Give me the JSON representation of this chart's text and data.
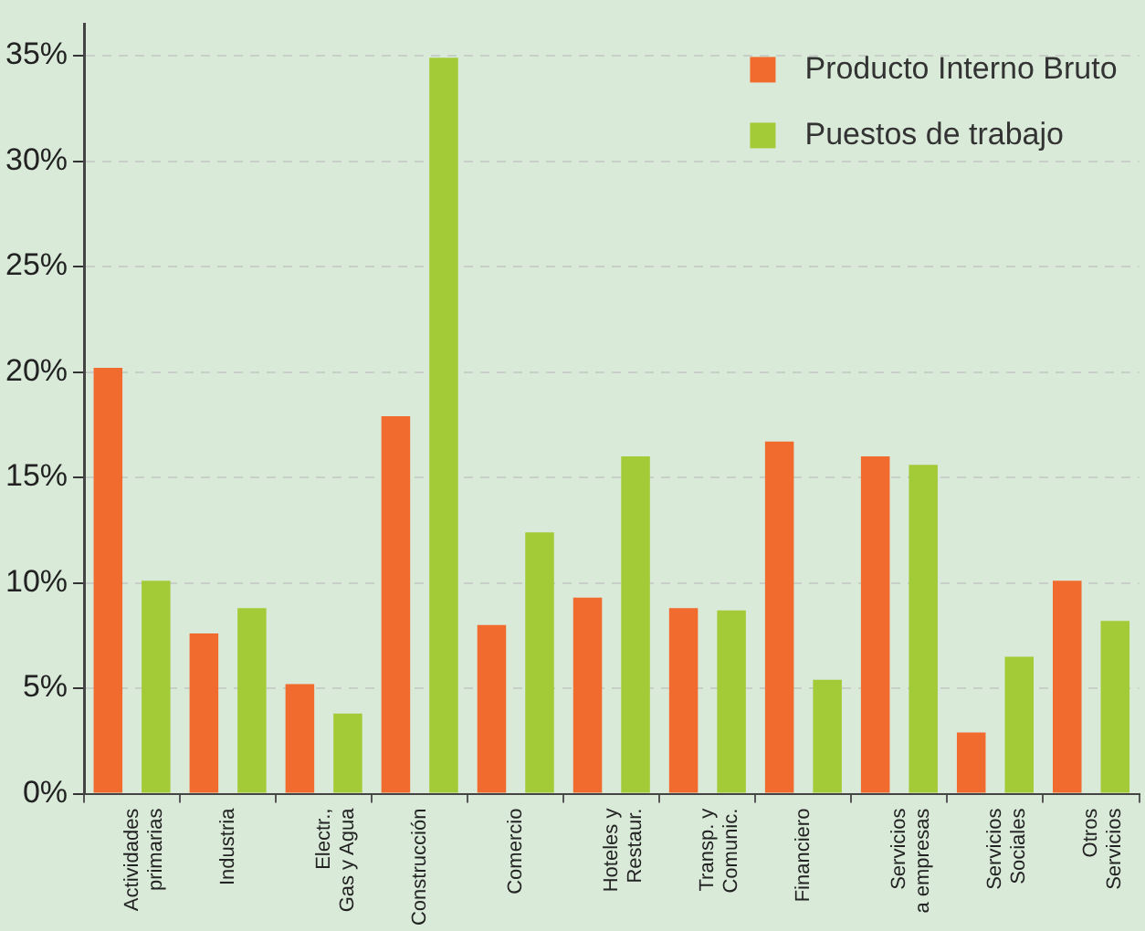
{
  "chart_data": {
    "type": "bar",
    "categories": [
      "Actividades\nprimarias",
      "Industria",
      "Electr.,\nGas y Agua",
      "Construcción",
      "Comercio",
      "Hoteles y\nRestaur.",
      "Transp. y\nComunic.",
      "Financiero",
      "Servicios\na empresas",
      "Servicios\nSociales",
      "Otros\nServicios"
    ],
    "series": [
      {
        "name": "Producto Interno Bruto",
        "color": "#f26b2e",
        "values": [
          20.2,
          7.6,
          5.2,
          17.9,
          8.0,
          9.3,
          8.8,
          16.7,
          16.0,
          2.9,
          10.1
        ]
      },
      {
        "name": "Puestos de trabajo",
        "color": "#a3cb38",
        "values": [
          10.1,
          8.8,
          3.8,
          34.9,
          12.4,
          16.0,
          8.7,
          5.4,
          15.6,
          6.5,
          8.2
        ]
      }
    ],
    "ylim": [
      0,
      36.5
    ],
    "yticks": [
      {
        "value": 0,
        "label": "0%"
      },
      {
        "value": 5,
        "label": "5%"
      },
      {
        "value": 10,
        "label": "10%"
      },
      {
        "value": 15,
        "label": "15%"
      },
      {
        "value": 20,
        "label": "20%"
      },
      {
        "value": 25,
        "label": "25%"
      },
      {
        "value": 30,
        "label": "30%"
      },
      {
        "value": 35,
        "label": "35%"
      }
    ],
    "grid": "y",
    "legend": "top right"
  }
}
